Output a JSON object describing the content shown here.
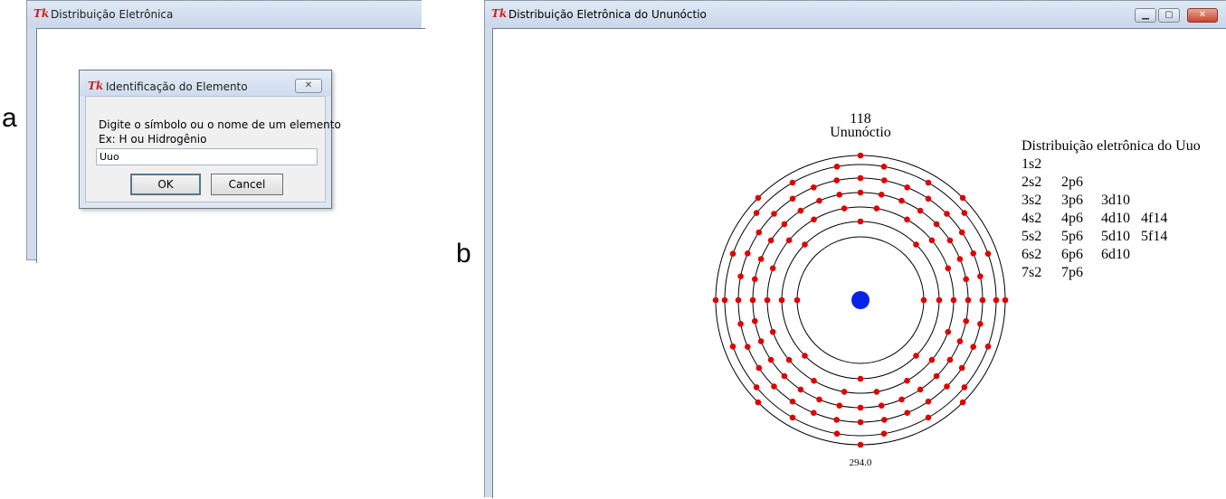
{
  "labels": {
    "a": "a",
    "b": "b"
  },
  "window_a": {
    "title": "Distribuição Eletrônica",
    "icon": "tk-feather-icon"
  },
  "dialog": {
    "title": "Identificação do Elemento",
    "prompt_line1": "Digite o símbolo ou o nome de um elemento",
    "prompt_line2": "Ex: H ou Hidrogênio",
    "input_value": "Uuo",
    "ok_label": "OK",
    "cancel_label": "Cancel",
    "close_label": "✕"
  },
  "window_b": {
    "title": "Distribuição Eletrônica do Ununóctio",
    "icon": "tk-feather-icon",
    "minimize_label": "▁",
    "maximize_label": "▢",
    "close_label": "✕"
  },
  "diagram": {
    "atomic_number": "118",
    "element_name": "Ununóctio",
    "atomic_mass": "294.0",
    "shell_electrons": [
      2,
      8,
      18,
      32,
      32,
      18,
      8
    ],
    "colors": {
      "nucleus": "#0a22e8",
      "electron": "#e00000",
      "orbit": "#000000"
    }
  },
  "distribution": {
    "heading": "Distribuição eletrônica do Uuo",
    "rows": [
      [
        "1s2"
      ],
      [
        "2s2",
        "2p6"
      ],
      [
        "3s2",
        "3p6",
        "3d10"
      ],
      [
        "4s2",
        "4p6",
        "4d10",
        "4f14"
      ],
      [
        "5s2",
        "5p6",
        "5d10",
        "5f14"
      ],
      [
        "6s2",
        "6p6",
        "6d10"
      ],
      [
        "7s2",
        "7p6"
      ]
    ]
  }
}
